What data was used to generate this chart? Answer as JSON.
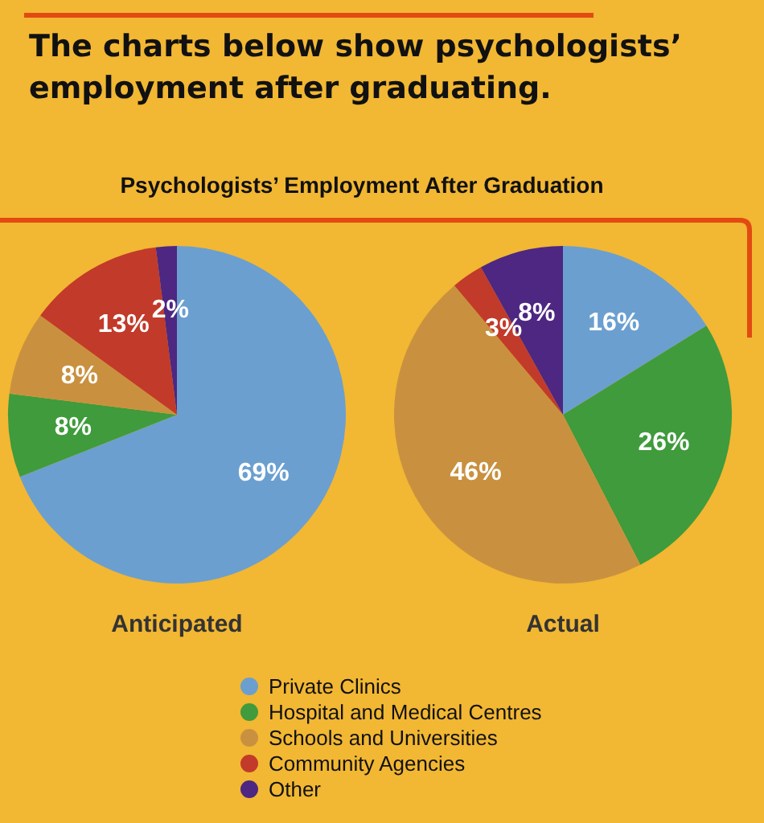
{
  "chart_data": {
    "type": "pie",
    "title": "The charts below show psychologists’ employment after graduating.",
    "subtitle": "Psychologists’ Employment After Graduation",
    "categories": [
      "Private Clinics",
      "Hospital and Medical Centres",
      "Schools and Universities",
      "Community Agencies",
      "Other"
    ],
    "colors": [
      "#6b9fd0",
      "#3f9b3c",
      "#c9913f",
      "#c23a2a",
      "#4d2781"
    ],
    "legend": "bottom",
    "series": [
      {
        "name": "Anticipated",
        "values": [
          69,
          8,
          8,
          13,
          2
        ],
        "value_labels": [
          "69%",
          "8%",
          "8%",
          "13%",
          "2%"
        ]
      },
      {
        "name": "Actual",
        "values": [
          16,
          26,
          46,
          3,
          8
        ],
        "value_labels": [
          "16%",
          "26%",
          "46%",
          "3%",
          "8%"
        ]
      }
    ]
  }
}
